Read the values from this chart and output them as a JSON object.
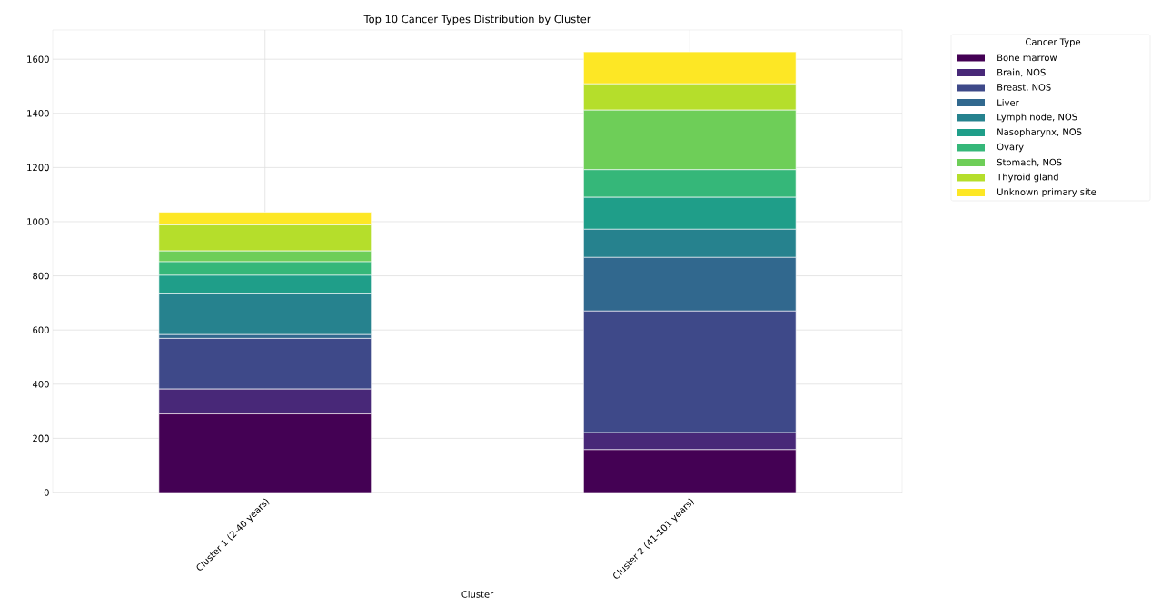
{
  "chart_data": {
    "type": "bar",
    "title": "Top 10 Cancer Types Distribution by Cluster",
    "xlabel": "Cluster",
    "legend_title": "Cancer Type",
    "categories": [
      "Cluster 1 (2-40 years)",
      "Cluster 2 (41-101 years)"
    ],
    "stacked": true,
    "grid": true,
    "legend": "top right",
    "ylim": [
      0,
      1708
    ],
    "yticks": [
      0,
      200,
      400,
      600,
      800,
      1000,
      1200,
      1400,
      1600
    ],
    "series": [
      {
        "name": "Bone marrow",
        "color": "#440154",
        "values": [
          290,
          158
        ]
      },
      {
        "name": "Brain, NOS",
        "color": "#482878",
        "values": [
          92,
          63
        ]
      },
      {
        "name": "Breast, NOS",
        "color": "#3e4989",
        "values": [
          187,
          449
        ]
      },
      {
        "name": "Liver",
        "color": "#31688e",
        "values": [
          14,
          198
        ]
      },
      {
        "name": "Lymph node, NOS",
        "color": "#26828e",
        "values": [
          153,
          104
        ]
      },
      {
        "name": "Nasopharynx, NOS",
        "color": "#1f9e89",
        "values": [
          66,
          118
        ]
      },
      {
        "name": "Ovary",
        "color": "#35b779",
        "values": [
          50,
          102
        ]
      },
      {
        "name": "Stomach, NOS",
        "color": "#6ece58",
        "values": [
          40,
          220
        ]
      },
      {
        "name": "Thyroid gland",
        "color": "#b5de2b",
        "values": [
          96,
          97
        ]
      },
      {
        "name": "Unknown primary site",
        "color": "#fde725",
        "values": [
          47,
          118
        ]
      }
    ]
  }
}
